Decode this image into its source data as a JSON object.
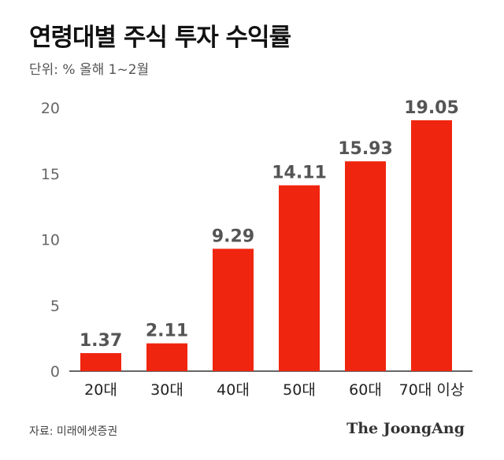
{
  "chart_data": {
    "type": "bar",
    "title": "연령대별 주식 투자 수익률",
    "subtitle": "단위: %  올해 1~2월",
    "categories": [
      "20대",
      "30대",
      "40대",
      "50대",
      "60대",
      "70대 이상"
    ],
    "values": [
      1.37,
      2.11,
      9.29,
      14.11,
      15.93,
      19.05
    ],
    "value_labels": [
      "1.37",
      "2.11",
      "9.29",
      "14.11",
      "15.93",
      "19.05"
    ],
    "ylim": [
      0,
      20
    ],
    "yticks": [
      0,
      5,
      10,
      15,
      20
    ],
    "grid": false,
    "bar_color": "#f0250f"
  },
  "footer": {
    "source": "자료: 미래에셋증권",
    "brand": "The JoongAng"
  }
}
